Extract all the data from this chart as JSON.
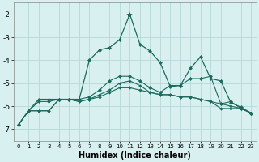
{
  "xlabel": "Humidex (Indice chaleur)",
  "x_values": [
    0,
    1,
    2,
    3,
    4,
    5,
    6,
    7,
    8,
    9,
    10,
    11,
    12,
    13,
    14,
    15,
    16,
    17,
    18,
    19,
    20,
    21,
    22,
    23
  ],
  "line1": [
    -6.8,
    -6.2,
    -6.2,
    -6.2,
    -5.7,
    -5.7,
    -5.8,
    -5.7,
    -5.6,
    -5.4,
    -5.2,
    -5.2,
    -5.3,
    -5.4,
    -5.5,
    -5.5,
    -5.6,
    -5.6,
    -5.7,
    -5.8,
    -5.9,
    -6.0,
    -6.1,
    -6.3
  ],
  "line2": [
    -6.8,
    -6.2,
    -6.2,
    -6.2,
    -5.7,
    -5.7,
    -5.8,
    -5.7,
    -5.5,
    -5.3,
    -5.0,
    -4.9,
    -5.1,
    -5.4,
    -5.5,
    -5.5,
    -5.6,
    -5.6,
    -5.7,
    -5.8,
    -6.1,
    -6.1,
    -6.1,
    -6.3
  ],
  "line3": [
    -6.8,
    -6.2,
    -5.8,
    -5.8,
    -5.7,
    -5.7,
    -5.7,
    -5.6,
    -5.3,
    -4.9,
    -4.7,
    -4.7,
    -4.9,
    -5.2,
    -5.4,
    -5.1,
    -5.1,
    -4.8,
    -4.8,
    -4.7,
    -5.9,
    -5.8,
    -6.1,
    -6.3
  ],
  "line4": [
    -6.8,
    -6.2,
    -5.7,
    -5.7,
    -5.7,
    -5.7,
    -5.7,
    -4.0,
    -3.55,
    -3.45,
    -3.1,
    -2.0,
    -3.3,
    -3.6,
    -4.1,
    -5.15,
    -5.1,
    -4.35,
    -3.85,
    -4.8,
    -4.9,
    -5.85,
    -6.05,
    -6.3
  ],
  "line_color": "#1a6b5a",
  "bg_color": "#d8f0f0",
  "grid_color": "#b8d8d8",
  "ylim": [
    -7.5,
    -1.5
  ],
  "yticks": [
    -7,
    -6,
    -5,
    -4,
    -3,
    -2
  ],
  "xlim": [
    -0.5,
    23.5
  ],
  "star_x": 11,
  "star_y": -2.0
}
